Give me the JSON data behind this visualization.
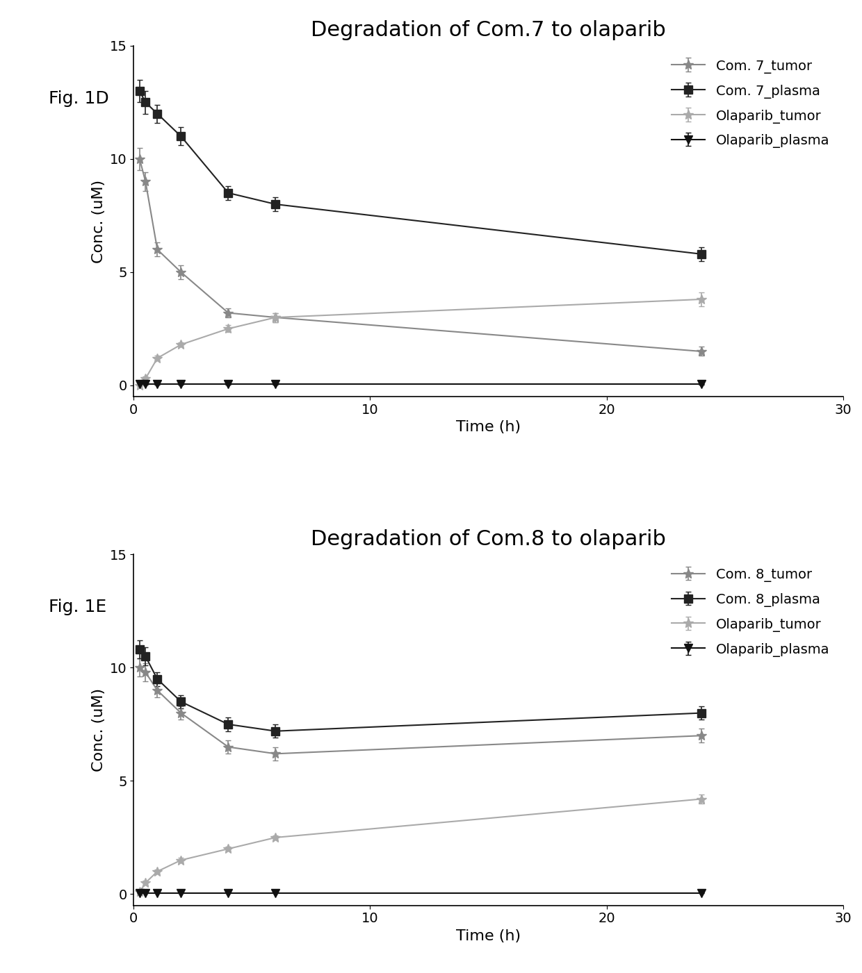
{
  "fig1D": {
    "title": "Degradation of Com.7 to olaparib",
    "xlabel": "Time (h)",
    "ylabel": "Conc. (uM)",
    "xlim": [
      0,
      30
    ],
    "ylim": [
      -0.5,
      15
    ],
    "yticks": [
      0,
      5,
      10,
      15
    ],
    "xticks": [
      0,
      10,
      20,
      30
    ],
    "series": {
      "com7_tumor": {
        "label": "Com. 7_tumor",
        "color": "#888888",
        "marker": "*",
        "markersize": 10,
        "x": [
          0.25,
          0.5,
          1,
          2,
          4,
          6,
          24
        ],
        "y": [
          10.0,
          9.0,
          6.0,
          5.0,
          3.2,
          3.0,
          1.5
        ],
        "yerr": [
          0.5,
          0.4,
          0.3,
          0.3,
          0.2,
          0.2,
          0.2
        ]
      },
      "com7_plasma": {
        "label": "Com. 7_plasma",
        "color": "#222222",
        "marker": "s",
        "markersize": 9,
        "x": [
          0.25,
          0.5,
          1,
          2,
          4,
          6,
          24
        ],
        "y": [
          13.0,
          12.5,
          12.0,
          11.0,
          8.5,
          8.0,
          5.8
        ],
        "yerr": [
          0.5,
          0.5,
          0.4,
          0.4,
          0.3,
          0.3,
          0.3
        ]
      },
      "olaparib_tumor": {
        "label": "Olaparib_tumor",
        "color": "#aaaaaa",
        "marker": "*",
        "markersize": 10,
        "x": [
          0.25,
          0.5,
          1,
          2,
          4,
          6,
          24
        ],
        "y": [
          0.0,
          0.3,
          1.2,
          1.8,
          2.5,
          3.0,
          3.8
        ],
        "yerr": [
          0.05,
          0.1,
          0.1,
          0.1,
          0.15,
          0.2,
          0.3
        ]
      },
      "olaparib_plasma": {
        "label": "Olaparib_plasma",
        "color": "#111111",
        "marker": "v",
        "markersize": 9,
        "x": [
          0.25,
          0.5,
          1,
          2,
          4,
          6,
          24
        ],
        "y": [
          0.05,
          0.05,
          0.05,
          0.05,
          0.05,
          0.05,
          0.05
        ],
        "yerr": [
          0.02,
          0.02,
          0.02,
          0.02,
          0.02,
          0.02,
          0.02
        ]
      }
    }
  },
  "fig1E": {
    "title": "Degradation of Com.8 to olaparib",
    "xlabel": "Time (h)",
    "ylabel": "Conc. (uM)",
    "xlim": [
      0,
      30
    ],
    "ylim": [
      -0.5,
      15
    ],
    "yticks": [
      0,
      5,
      10,
      15
    ],
    "xticks": [
      0,
      10,
      20,
      30
    ],
    "series": {
      "com8_tumor": {
        "label": "Com. 8_tumor",
        "color": "#888888",
        "marker": "*",
        "markersize": 10,
        "x": [
          0.25,
          0.5,
          1,
          2,
          4,
          6,
          24
        ],
        "y": [
          10.0,
          9.8,
          9.0,
          8.0,
          6.5,
          6.2,
          7.0
        ],
        "yerr": [
          0.4,
          0.4,
          0.3,
          0.3,
          0.3,
          0.3,
          0.3
        ]
      },
      "com8_plasma": {
        "label": "Com. 8_plasma",
        "color": "#222222",
        "marker": "s",
        "markersize": 9,
        "x": [
          0.25,
          0.5,
          1,
          2,
          4,
          6,
          24
        ],
        "y": [
          10.8,
          10.5,
          9.5,
          8.5,
          7.5,
          7.2,
          8.0
        ],
        "yerr": [
          0.4,
          0.4,
          0.3,
          0.3,
          0.3,
          0.3,
          0.3
        ]
      },
      "olaparib_tumor": {
        "label": "Olaparib_tumor",
        "color": "#aaaaaa",
        "marker": "*",
        "markersize": 10,
        "x": [
          0.25,
          0.5,
          1,
          2,
          4,
          6,
          24
        ],
        "y": [
          0.1,
          0.5,
          1.0,
          1.5,
          2.0,
          2.5,
          4.2
        ],
        "yerr": [
          0.05,
          0.1,
          0.1,
          0.1,
          0.1,
          0.1,
          0.2
        ]
      },
      "olaparib_plasma": {
        "label": "Olaparib_plasma",
        "color": "#111111",
        "marker": "v",
        "markersize": 9,
        "x": [
          0.25,
          0.5,
          1,
          2,
          4,
          6,
          24
        ],
        "y": [
          0.05,
          0.05,
          0.05,
          0.05,
          0.05,
          0.05,
          0.05
        ],
        "yerr": [
          0.02,
          0.02,
          0.02,
          0.02,
          0.02,
          0.02,
          0.02
        ]
      }
    }
  },
  "fig_label_1D": "Fig. 1D",
  "fig_label_1E": "Fig. 1E",
  "background_color": "#ffffff",
  "title_fontsize": 22,
  "label_fontsize": 16,
  "tick_fontsize": 14,
  "legend_fontsize": 14
}
